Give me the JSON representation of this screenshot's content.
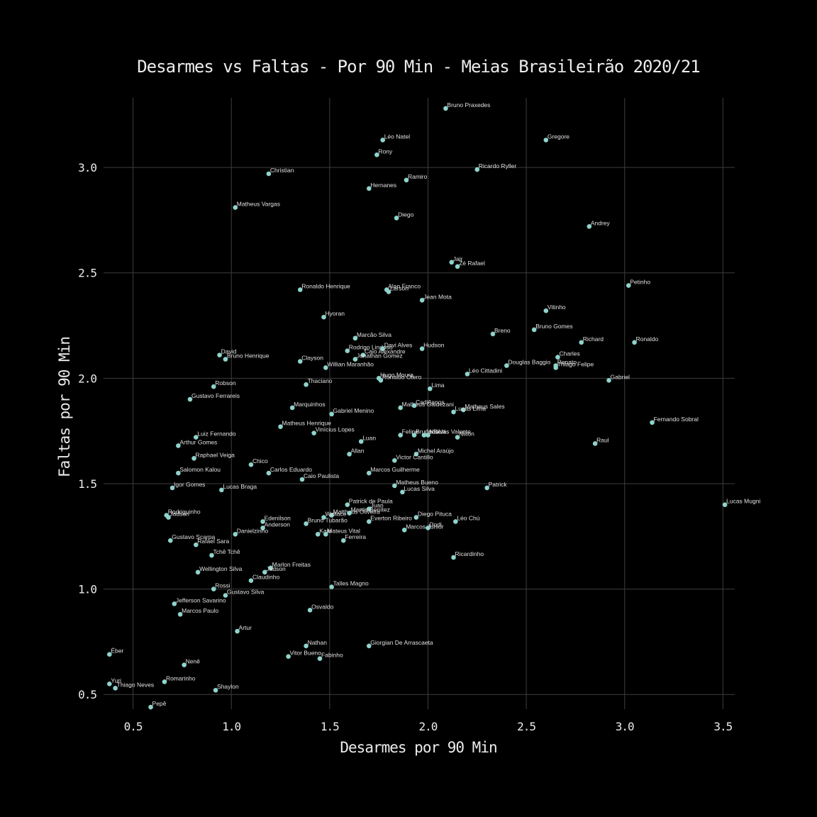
{
  "colors": {
    "background": "#000000",
    "point": "#8fd3cc",
    "text": "#ececec",
    "grid": "#3d3d3d"
  },
  "chart_data": {
    "type": "scatter",
    "title": "Desarmes vs Faltas - Por 90 Min - Meias Brasileirão 2020/21",
    "xlabel": "Desarmes por 90 Min",
    "ylabel": "Faltas por 90 Min",
    "xlim": [
      0.35,
      3.56
    ],
    "ylim": [
      0.43,
      3.33
    ],
    "xticks": [
      0.5,
      1.0,
      1.5,
      2.0,
      2.5,
      3.0,
      3.5
    ],
    "xtick_labels": [
      "0.5",
      "1.0",
      "1.5",
      "2.0",
      "2.5",
      "3.0",
      "3.5"
    ],
    "yticks": [
      0.5,
      1.0,
      1.5,
      2.0,
      2.5,
      3.0
    ],
    "ytick_labels": [
      "0.5",
      "1.0",
      "1.5",
      "2.0",
      "2.5",
      "3.0"
    ],
    "grid": true,
    "points": [
      {
        "label": "Bruno Praxedes",
        "x": 2.09,
        "y": 3.28
      },
      {
        "label": "Léo Natel",
        "x": 1.77,
        "y": 3.13
      },
      {
        "label": "Gregore",
        "x": 2.6,
        "y": 3.13
      },
      {
        "label": "Rony",
        "x": 1.74,
        "y": 3.06
      },
      {
        "label": "Ricardo Ryller",
        "x": 2.25,
        "y": 2.99
      },
      {
        "label": "Christian",
        "x": 1.19,
        "y": 2.97
      },
      {
        "label": "Ramiro",
        "x": 1.89,
        "y": 2.94
      },
      {
        "label": "Hernanes",
        "x": 1.7,
        "y": 2.9
      },
      {
        "label": "Matheus Vargas",
        "x": 1.02,
        "y": 2.81
      },
      {
        "label": "Diego",
        "x": 1.84,
        "y": 2.76
      },
      {
        "label": "Andrey",
        "x": 2.82,
        "y": 2.72
      },
      {
        "label": "Jair",
        "x": 2.12,
        "y": 2.55
      },
      {
        "label": "Zé Rafael",
        "x": 2.15,
        "y": 2.53
      },
      {
        "label": "Petinho",
        "x": 3.02,
        "y": 2.44
      },
      {
        "label": "Ronaldo Henrique",
        "x": 1.35,
        "y": 2.42
      },
      {
        "label": "Alan Franco",
        "x": 1.79,
        "y": 2.42
      },
      {
        "label": "Larson",
        "x": 1.8,
        "y": 2.41
      },
      {
        "label": "Jean Mota",
        "x": 1.97,
        "y": 2.37
      },
      {
        "label": "Vitinho",
        "x": 2.6,
        "y": 2.32
      },
      {
        "label": "Hyoran",
        "x": 1.47,
        "y": 2.29
      },
      {
        "label": "Bruno Gomes",
        "x": 2.54,
        "y": 2.23
      },
      {
        "label": "Breno",
        "x": 2.33,
        "y": 2.21
      },
      {
        "label": "Marcão Silva",
        "x": 1.63,
        "y": 2.19
      },
      {
        "label": "Richard",
        "x": 2.78,
        "y": 2.17
      },
      {
        "label": "Ronaldo",
        "x": 3.05,
        "y": 2.17
      },
      {
        "label": "Rodrigo Lindoso",
        "x": 1.59,
        "y": 2.13
      },
      {
        "label": "Davi Alves",
        "x": 1.77,
        "y": 2.14
      },
      {
        "label": "Hudson",
        "x": 1.97,
        "y": 2.14
      },
      {
        "label": "Caio Alexandre",
        "x": 1.67,
        "y": 2.11
      },
      {
        "label": "David",
        "x": 0.94,
        "y": 2.11
      },
      {
        "label": "Bruno Henrique",
        "x": 0.97,
        "y": 2.09
      },
      {
        "label": "Charles",
        "x": 2.66,
        "y": 2.1
      },
      {
        "label": "Jonathan Gomez",
        "x": 1.63,
        "y": 2.09
      },
      {
        "label": "Clayson",
        "x": 1.35,
        "y": 2.08
      },
      {
        "label": "Douglas Baggio",
        "x": 2.4,
        "y": 2.06
      },
      {
        "label": "Renato",
        "x": 2.65,
        "y": 2.06
      },
      {
        "label": "Thiago Felipe",
        "x": 2.65,
        "y": 2.05
      },
      {
        "label": "Willian Maranhão",
        "x": 1.48,
        "y": 2.05
      },
      {
        "label": "Léo Cittadini",
        "x": 2.2,
        "y": 2.02
      },
      {
        "label": "Hugo Moura",
        "x": 1.75,
        "y": 2.0
      },
      {
        "label": "Ronaldo Otero",
        "x": 1.76,
        "y": 1.99
      },
      {
        "label": "Gabriel",
        "x": 2.92,
        "y": 1.99
      },
      {
        "label": "Thaciano",
        "x": 1.38,
        "y": 1.97
      },
      {
        "label": "Robson",
        "x": 0.91,
        "y": 1.96
      },
      {
        "label": "Lima",
        "x": 2.01,
        "y": 1.95
      },
      {
        "label": "Gustavo Ferrareis",
        "x": 0.79,
        "y": 1.9
      },
      {
        "label": "Matheus Galdezani",
        "x": 1.86,
        "y": 1.86
      },
      {
        "label": "Cadiñanos",
        "x": 1.93,
        "y": 1.87
      },
      {
        "label": "Matheus Sales",
        "x": 2.18,
        "y": 1.85
      },
      {
        "label": "Lucas Lima",
        "x": 2.13,
        "y": 1.84
      },
      {
        "label": "Marquinhos",
        "x": 1.31,
        "y": 1.86
      },
      {
        "label": "Gabriel Menino",
        "x": 1.51,
        "y": 1.83
      },
      {
        "label": "Fernando Sobral",
        "x": 3.14,
        "y": 1.79
      },
      {
        "label": "Matheus Henrique",
        "x": 1.25,
        "y": 1.77
      },
      {
        "label": "Vinícius Lopes",
        "x": 1.42,
        "y": 1.74
      },
      {
        "label": "Felipe",
        "x": 1.86,
        "y": 1.73
      },
      {
        "label": "Bruno Silva",
        "x": 1.93,
        "y": 1.73
      },
      {
        "label": "Jadson",
        "x": 1.98,
        "y": 1.73
      },
      {
        "label": "Nicolás Valente",
        "x": 2.0,
        "y": 1.73
      },
      {
        "label": "Nilton",
        "x": 2.15,
        "y": 1.72
      },
      {
        "label": "Luiz Fernando",
        "x": 0.82,
        "y": 1.72
      },
      {
        "label": "Luan",
        "x": 1.66,
        "y": 1.7
      },
      {
        "label": "Raul",
        "x": 2.85,
        "y": 1.69
      },
      {
        "label": "Arthur Gomes",
        "x": 0.73,
        "y": 1.68
      },
      {
        "label": "Allan",
        "x": 1.6,
        "y": 1.64
      },
      {
        "label": "Michel Araújo",
        "x": 1.94,
        "y": 1.64
      },
      {
        "label": "Raphael Veiga",
        "x": 0.81,
        "y": 1.62
      },
      {
        "label": "Victor Cantillo",
        "x": 1.83,
        "y": 1.61
      },
      {
        "label": "Chico",
        "x": 1.1,
        "y": 1.59
      },
      {
        "label": "Salomon Kalou",
        "x": 0.73,
        "y": 1.55
      },
      {
        "label": "Carlos Eduardo",
        "x": 1.19,
        "y": 1.55
      },
      {
        "label": "Marcos Guilherme",
        "x": 1.7,
        "y": 1.55
      },
      {
        "label": "Caio Paulista",
        "x": 1.36,
        "y": 1.52
      },
      {
        "label": "Matheus Bueno",
        "x": 1.83,
        "y": 1.49
      },
      {
        "label": "Patrick",
        "x": 2.3,
        "y": 1.48
      },
      {
        "label": "Igor Gomes",
        "x": 0.7,
        "y": 1.48
      },
      {
        "label": "Lucas Braga",
        "x": 0.95,
        "y": 1.47
      },
      {
        "label": "Lucas Silva",
        "x": 1.87,
        "y": 1.46
      },
      {
        "label": "Lucas Mugni",
        "x": 3.51,
        "y": 1.4
      },
      {
        "label": "Patrick de Paula",
        "x": 1.59,
        "y": 1.4
      },
      {
        "label": "Juan",
        "x": 1.7,
        "y": 1.38
      },
      {
        "label": "Rodriguinho",
        "x": 0.67,
        "y": 1.35
      },
      {
        "label": "Mattheus Oliveira",
        "x": 1.51,
        "y": 1.35
      },
      {
        "label": "Martín Benítez",
        "x": 1.6,
        "y": 1.36
      },
      {
        "label": "Diego Pituca",
        "x": 1.94,
        "y": 1.34
      },
      {
        "label": "Jadson",
        "x": 0.68,
        "y": 1.34
      },
      {
        "label": "Wallace",
        "x": 1.47,
        "y": 1.34
      },
      {
        "label": "Everton Ribeiro",
        "x": 1.7,
        "y": 1.32
      },
      {
        "label": "Léo Chú",
        "x": 2.14,
        "y": 1.32
      },
      {
        "label": "Edenilson",
        "x": 1.16,
        "y": 1.32
      },
      {
        "label": "Bruno Tubarão",
        "x": 1.38,
        "y": 1.31
      },
      {
        "label": "Anderson",
        "x": 1.16,
        "y": 1.29
      },
      {
        "label": "Marcos Júnior",
        "x": 1.88,
        "y": 1.28
      },
      {
        "label": "Dodi",
        "x": 2.0,
        "y": 1.29
      },
      {
        "label": "Danielzinho",
        "x": 1.02,
        "y": 1.26
      },
      {
        "label": "Kaio",
        "x": 1.44,
        "y": 1.26
      },
      {
        "label": "Mateus Vital",
        "x": 1.48,
        "y": 1.26
      },
      {
        "label": "Gustavo Scarpa",
        "x": 0.69,
        "y": 1.23
      },
      {
        "label": "Ferreira",
        "x": 1.57,
        "y": 1.23
      },
      {
        "label": "Rafael Sara",
        "x": 0.82,
        "y": 1.21
      },
      {
        "label": "Tchê Tchê",
        "x": 0.9,
        "y": 1.16
      },
      {
        "label": "Ricardinho",
        "x": 2.13,
        "y": 1.15
      },
      {
        "label": "Marlon Freitas",
        "x": 1.2,
        "y": 1.1
      },
      {
        "label": "Jadson",
        "x": 1.17,
        "y": 1.08
      },
      {
        "label": "Wellington Silva",
        "x": 0.83,
        "y": 1.08
      },
      {
        "label": "Claudinho",
        "x": 1.1,
        "y": 1.04
      },
      {
        "label": "Talles Magno",
        "x": 1.51,
        "y": 1.01
      },
      {
        "label": "Rossi",
        "x": 0.91,
        "y": 1.0
      },
      {
        "label": "Gustavo Silva",
        "x": 0.97,
        "y": 0.97
      },
      {
        "label": "Jefferson Savarino",
        "x": 0.71,
        "y": 0.93
      },
      {
        "label": "Osvaldo",
        "x": 1.4,
        "y": 0.9
      },
      {
        "label": "Marcos Paulo",
        "x": 0.74,
        "y": 0.88
      },
      {
        "label": "Artur",
        "x": 1.03,
        "y": 0.8
      },
      {
        "label": "Nathan",
        "x": 1.38,
        "y": 0.73
      },
      {
        "label": "Giorgian De Arrascaeta",
        "x": 1.7,
        "y": 0.73
      },
      {
        "label": "Éber",
        "x": 0.38,
        "y": 0.69
      },
      {
        "label": "Vitor Bueno",
        "x": 1.29,
        "y": 0.68
      },
      {
        "label": "Fabinho",
        "x": 1.45,
        "y": 0.67
      },
      {
        "label": "Nenê",
        "x": 0.76,
        "y": 0.64
      },
      {
        "label": "Romarinho",
        "x": 0.66,
        "y": 0.56
      },
      {
        "label": "Yuri",
        "x": 0.38,
        "y": 0.55
      },
      {
        "label": "Thiago Neves",
        "x": 0.41,
        "y": 0.53
      },
      {
        "label": "Shaylon",
        "x": 0.92,
        "y": 0.52
      },
      {
        "label": "Pepê",
        "x": 0.59,
        "y": 0.44
      }
    ]
  }
}
